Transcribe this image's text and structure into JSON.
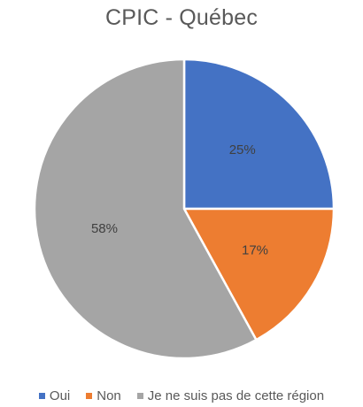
{
  "chart_data": {
    "type": "pie",
    "title": "CPIC - Québec",
    "slices": [
      {
        "name": "Oui",
        "value": 25,
        "label": "25%",
        "color": "#4472C4"
      },
      {
        "name": "Non",
        "value": 17,
        "label": "17%",
        "color": "#ED7D31"
      },
      {
        "name": "Je ne suis pas de cette région",
        "value": 58,
        "label": "58%",
        "color": "#A5A5A5"
      }
    ],
    "legend_position": "bottom"
  }
}
